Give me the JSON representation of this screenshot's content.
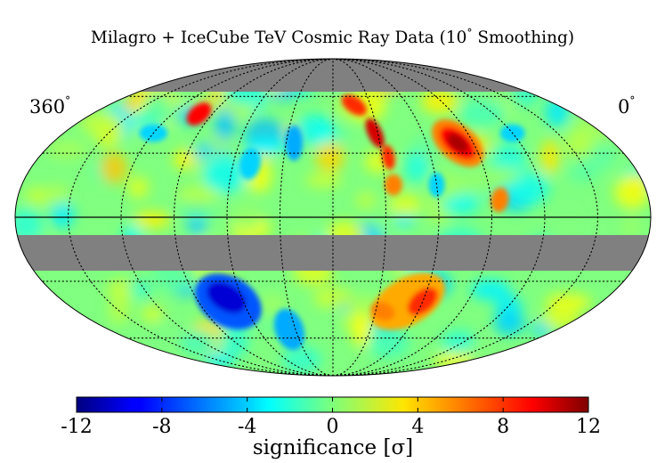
{
  "title": "Milagro + IceCube TeV Cosmic Ray Data (10",
  "title_degree": "°",
  "title_tail": "  Smoothing)",
  "corner_left": "360",
  "corner_right": "0",
  "degree_symbol": "°",
  "colorbar": {
    "label": "significance [σ]",
    "ticks": [
      "-12",
      "-8",
      "-4",
      "0",
      "4",
      "8",
      "12"
    ],
    "tick_values": [
      -12,
      -8,
      -4,
      0,
      4,
      8,
      12
    ],
    "range": [
      -12,
      12
    ],
    "colormap": "jet"
  },
  "chart_data": {
    "type": "heatmap",
    "projection": "mollweide",
    "title": "Milagro + IceCube TeV Cosmic Ray Data (10° Smoothing)",
    "x_range_deg": [
      360,
      0
    ],
    "value_range": [
      -12,
      12
    ],
    "value_label": "significance [σ]",
    "masked_regions": [
      "dec above ~70° (top cap)",
      "band just below equator (~-5° to -20°)"
    ],
    "hotspots": [
      {
        "label": "large excess",
        "lon_deg": 100,
        "lat_deg": 35,
        "value": 11
      },
      {
        "label": "elongated excess",
        "lon_deg": 150,
        "lat_deg": 40,
        "value": 10
      },
      {
        "label": "small excess",
        "lon_deg": 280,
        "lat_deg": 50,
        "value": 8
      },
      {
        "label": "southern excess",
        "lon_deg": 130,
        "lat_deg": -40,
        "value": 7
      },
      {
        "label": "southern deficit",
        "lon_deg": 250,
        "lat_deg": -40,
        "value": -10
      }
    ],
    "grid": true,
    "colors": {
      "masked": "#808080",
      "grid": "#000000"
    }
  }
}
